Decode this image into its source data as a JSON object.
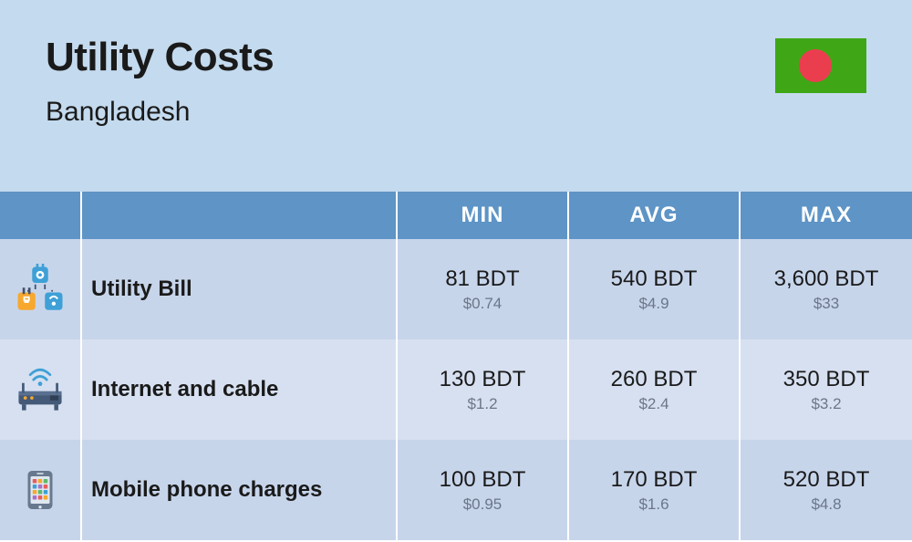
{
  "header": {
    "title": "Utility Costs",
    "subtitle": "Bangladesh",
    "bg_color": "#c4daee"
  },
  "flag": {
    "bg": "#3fa716",
    "circle": "#ea3e4f",
    "width": 100,
    "height": 60,
    "circle_diameter": 36
  },
  "columns": {
    "min": "MIN",
    "avg": "AVG",
    "max": "MAX",
    "header_bg": "#5e94c6",
    "header_text": "#ffffff"
  },
  "row_colors": {
    "even": "#c7d5eb",
    "odd": "#d6e0f0"
  },
  "usd_color": "#6b7688",
  "rows": [
    {
      "icon": "utility",
      "label": "Utility Bill",
      "min_bdt": "81 BDT",
      "min_usd": "$0.74",
      "avg_bdt": "540 BDT",
      "avg_usd": "$4.9",
      "max_bdt": "3,600 BDT",
      "max_usd": "$33"
    },
    {
      "icon": "router",
      "label": "Internet and cable",
      "min_bdt": "130 BDT",
      "min_usd": "$1.2",
      "avg_bdt": "260 BDT",
      "avg_usd": "$2.4",
      "max_bdt": "350 BDT",
      "max_usd": "$3.2"
    },
    {
      "icon": "phone",
      "label": "Mobile phone charges",
      "min_bdt": "100 BDT",
      "min_usd": "$0.95",
      "avg_bdt": "170 BDT",
      "avg_usd": "$1.6",
      "max_bdt": "520 BDT",
      "max_usd": "$4.8"
    }
  ]
}
